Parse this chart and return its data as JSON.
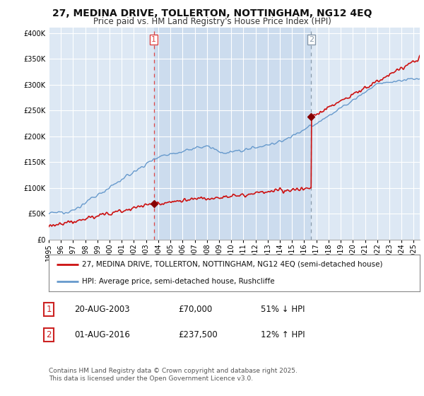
{
  "title": "27, MEDINA DRIVE, TOLLERTON, NOTTINGHAM, NG12 4EQ",
  "subtitle": "Price paid vs. HM Land Registry's House Price Index (HPI)",
  "ylim": [
    0,
    410000
  ],
  "xlim_start": 1995.0,
  "xlim_end": 2025.5,
  "plot_bg": "#dde8f4",
  "highlight_bg": "#ccdcee",
  "grid_color": "#ffffff",
  "sale1_date": 2003.63,
  "sale1_price": 70000,
  "sale2_date": 2016.58,
  "sale2_price": 237500,
  "red_line_color": "#cc1111",
  "blue_line_color": "#6699cc",
  "marker_color": "#880000",
  "vline1_color": "#dd4444",
  "vline2_color": "#8899aa",
  "legend_red_label": "27, MEDINA DRIVE, TOLLERTON, NOTTINGHAM, NG12 4EQ (semi-detached house)",
  "legend_blue_label": "HPI: Average price, semi-detached house, Rushcliffe",
  "footer": "Contains HM Land Registry data © Crown copyright and database right 2025.\nThis data is licensed under the Open Government Licence v3.0.",
  "title_fontsize": 10,
  "subtitle_fontsize": 8.5,
  "tick_fontsize": 7
}
